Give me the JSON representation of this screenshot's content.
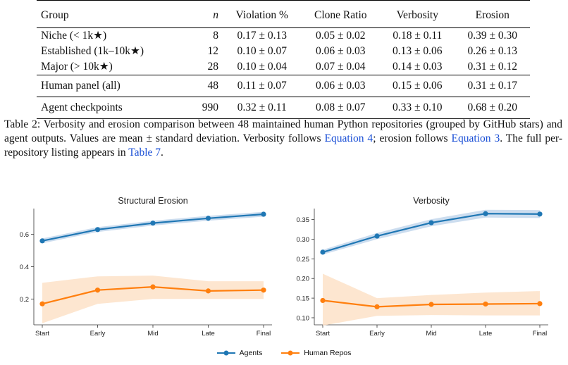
{
  "table": {
    "headers": [
      "Group",
      "n",
      "Violation %",
      "Clone Ratio",
      "Verbosity",
      "Erosion"
    ],
    "groups": [
      [
        {
          "group": "Niche (< 1k★)",
          "n": "8",
          "violation": "0.17 ± 0.13",
          "clone": "0.05 ± 0.02",
          "verbosity": "0.18 ± 0.11",
          "erosion": "0.39 ± 0.30"
        },
        {
          "group": "Established (1k–10k★)",
          "n": "12",
          "violation": "0.10 ± 0.07",
          "clone": "0.06 ± 0.03",
          "verbosity": "0.13 ± 0.06",
          "erosion": "0.26 ± 0.13"
        },
        {
          "group": "Major (> 10k★)",
          "n": "28",
          "violation": "0.10 ± 0.04",
          "clone": "0.07 ± 0.04",
          "verbosity": "0.14 ± 0.03",
          "erosion": "0.31 ± 0.12"
        }
      ],
      [
        {
          "group": "Human panel (all)",
          "n": "48",
          "violation": "0.11 ± 0.07",
          "clone": "0.06 ± 0.03",
          "verbosity": "0.15 ± 0.06",
          "erosion": "0.31 ± 0.17"
        }
      ],
      [
        {
          "group": "Agent checkpoints",
          "n": "990",
          "violation": "0.32 ± 0.11",
          "clone": "0.08 ± 0.07",
          "verbosity": "0.33 ± 0.10",
          "erosion": "0.68 ± 0.20"
        }
      ]
    ]
  },
  "caption": {
    "text_1": "Table 2: Verbosity and erosion comparison between 48 maintained human Python repositories (grouped by GitHub stars) and agent outputs. Values are mean ± standard deviation. Verbosity follows ",
    "ref_1": "Equation 4",
    "text_2": "; erosion follows ",
    "ref_2": "Equation 3",
    "text_3": ". The full per-repository listing appears in ",
    "ref_3": "Table 7",
    "text_4": "."
  },
  "colors": {
    "agents": "#1f77b4",
    "human": "#ff7f0e",
    "agents_band": "#c3d7ec",
    "human_band": "#fde2c8"
  },
  "chart_data": [
    {
      "type": "line",
      "title": "Structural Erosion",
      "categories": [
        "Start",
        "Early",
        "Mid",
        "Late",
        "Final"
      ],
      "ylim": [
        0.04,
        0.76
      ],
      "yticks": [
        0.2,
        0.4,
        0.6
      ],
      "ytick_labels": [
        "0.2",
        "0.4",
        "0.6"
      ],
      "series": [
        {
          "name": "Agents",
          "values": [
            0.56,
            0.63,
            0.67,
            0.7,
            0.725
          ],
          "lower": [
            0.545,
            0.615,
            0.655,
            0.685,
            0.71
          ],
          "upper": [
            0.575,
            0.645,
            0.685,
            0.715,
            0.74
          ]
        },
        {
          "name": "Human Repos",
          "values": [
            0.17,
            0.255,
            0.275,
            0.25,
            0.255
          ],
          "lower": [
            0.05,
            0.17,
            0.2,
            0.2,
            0.2
          ],
          "upper": [
            0.3,
            0.34,
            0.345,
            0.31,
            0.31
          ]
        }
      ]
    },
    {
      "type": "line",
      "title": "Verbosity",
      "categories": [
        "Start",
        "Early",
        "Mid",
        "Late",
        "Final"
      ],
      "ylim": [
        0.082,
        0.378
      ],
      "yticks": [
        0.1,
        0.15,
        0.2,
        0.25,
        0.3,
        0.35
      ],
      "ytick_labels": [
        "0.10",
        "0.15",
        "0.20",
        "0.25",
        "0.30",
        "0.35"
      ],
      "series": [
        {
          "name": "Agents",
          "values": [
            0.267,
            0.308,
            0.342,
            0.365,
            0.364
          ],
          "lower": [
            0.261,
            0.3,
            0.333,
            0.355,
            0.354
          ],
          "upper": [
            0.273,
            0.316,
            0.351,
            0.375,
            0.374
          ]
        },
        {
          "name": "Human Repos",
          "values": [
            0.144,
            0.128,
            0.134,
            0.135,
            0.136
          ],
          "lower": [
            0.08,
            0.105,
            0.107,
            0.106,
            0.106
          ],
          "upper": [
            0.212,
            0.15,
            0.158,
            0.164,
            0.168
          ]
        }
      ]
    }
  ],
  "legend": [
    "Agents",
    "Human Repos"
  ]
}
